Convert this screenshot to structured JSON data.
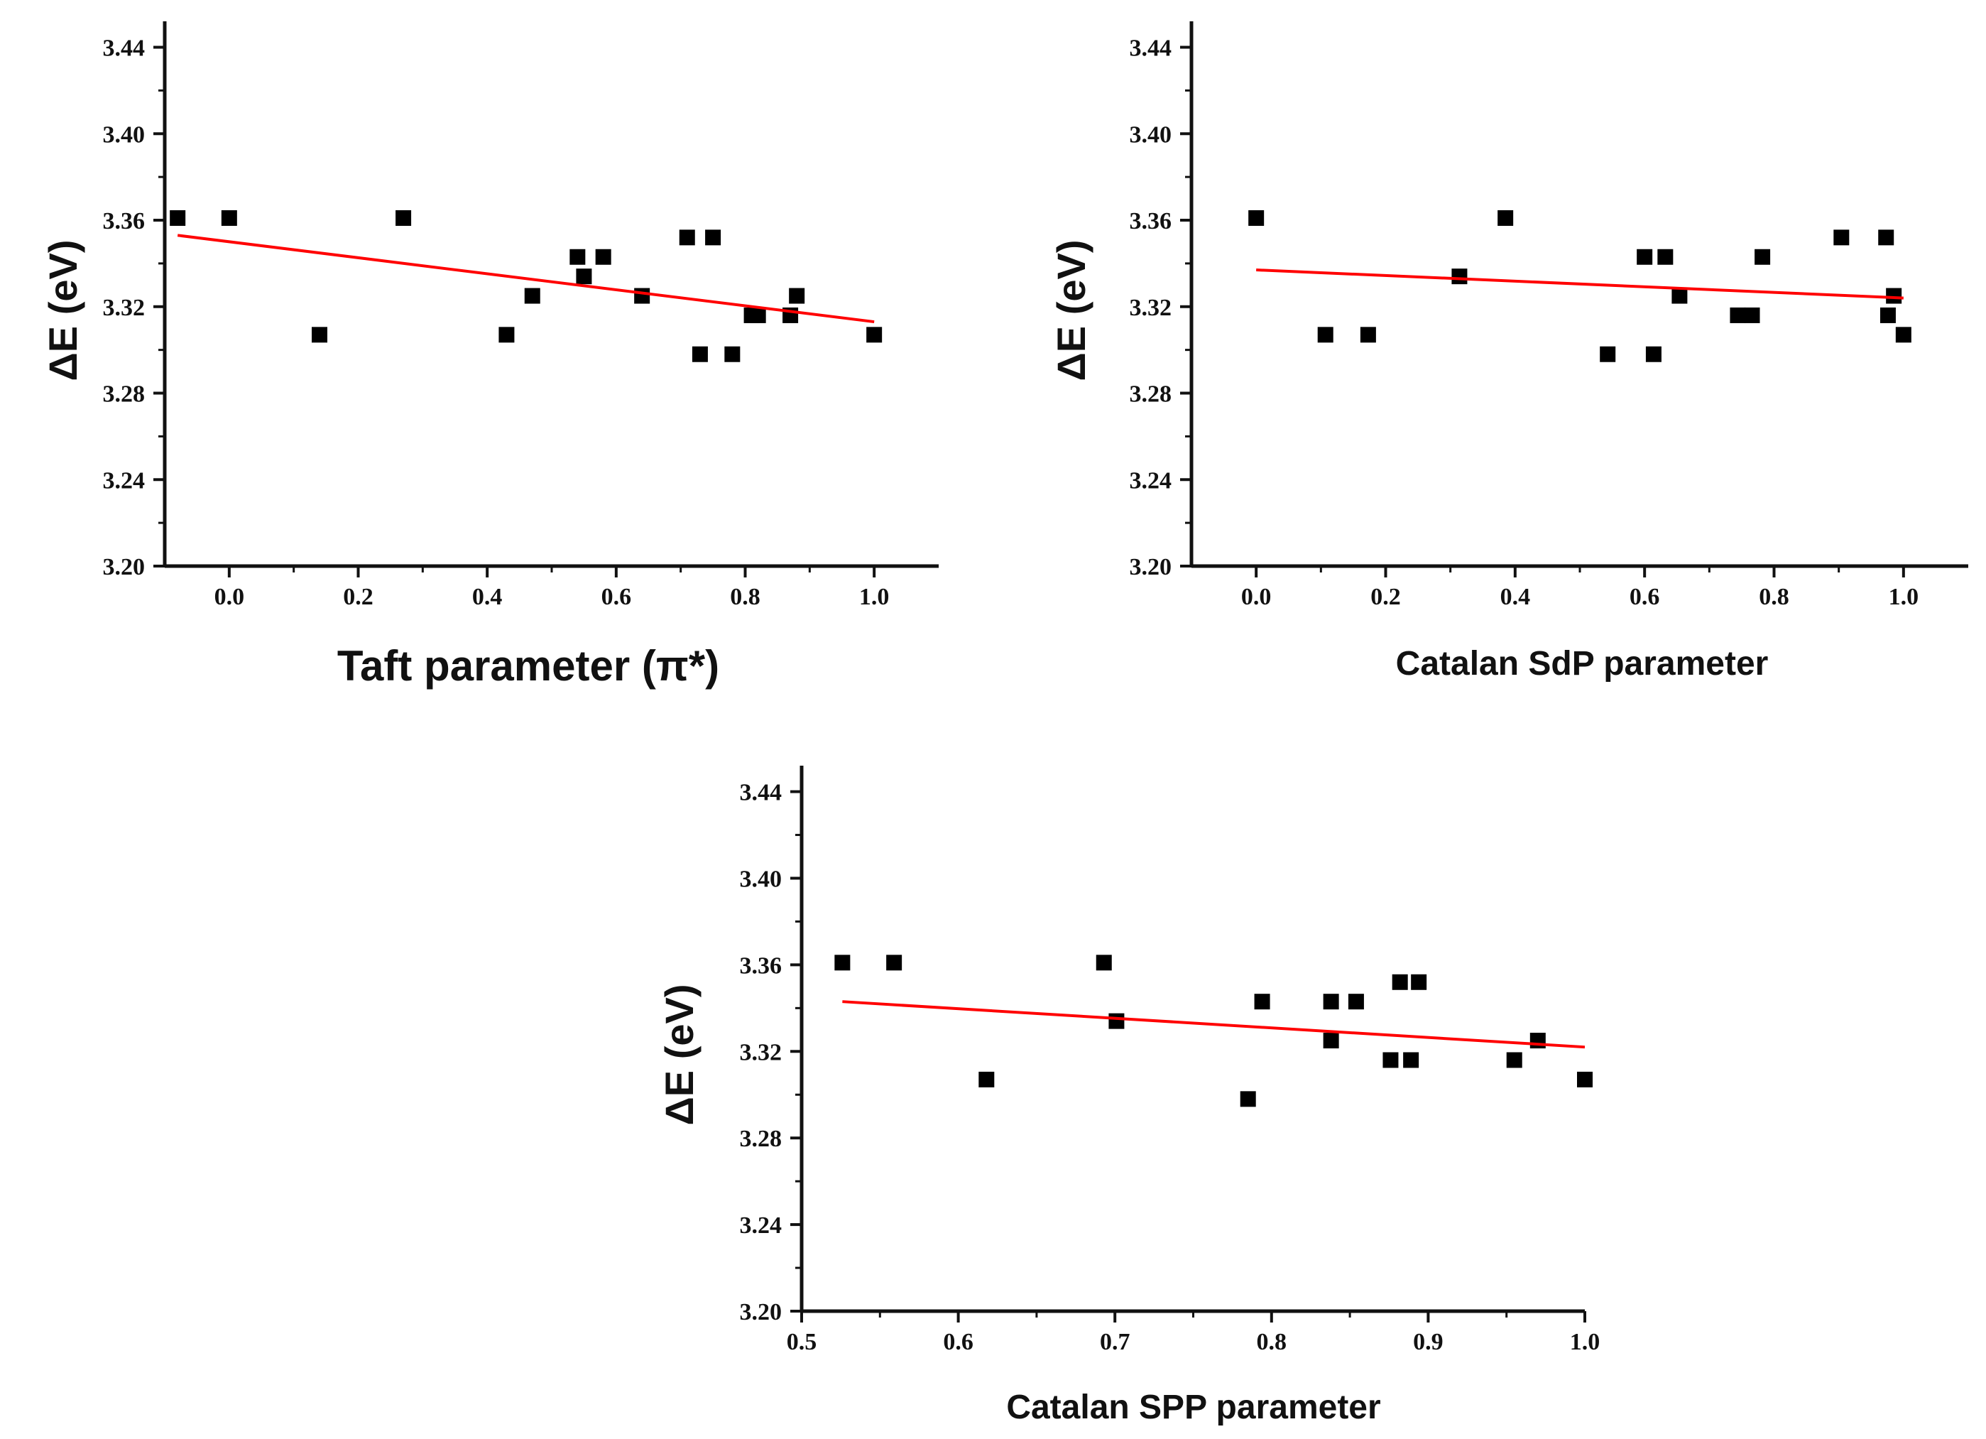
{
  "chart_data": [
    {
      "type": "scatter",
      "title": "",
      "xlabel": "Taft parameter (π*)",
      "ylabel": "ΔE (eV)",
      "xlim": [
        -0.1,
        1.1
      ],
      "ylim": [
        3.2,
        3.452
      ],
      "xticks": [
        0.0,
        0.2,
        0.4,
        0.6,
        0.8,
        1.0
      ],
      "xtick_labels": [
        "0.0",
        "0.2",
        "0.4",
        "0.6",
        "0.8",
        "1.0"
      ],
      "yticks": [
        3.2,
        3.24,
        3.28,
        3.32,
        3.36,
        3.4,
        3.44
      ],
      "ytick_labels": [
        "3.20",
        "3.24",
        "3.28",
        "3.32",
        "3.36",
        "3.40",
        "3.44"
      ],
      "series": [
        {
          "name": "data",
          "x": [
            -0.08,
            0.0,
            0.14,
            0.27,
            0.43,
            0.47,
            0.54,
            0.55,
            0.58,
            0.64,
            0.71,
            0.73,
            0.75,
            0.78,
            0.81,
            0.82,
            0.87,
            0.88,
            1.0
          ],
          "y": [
            3.361,
            3.361,
            3.307,
            3.361,
            3.307,
            3.325,
            3.343,
            3.334,
            3.343,
            3.325,
            3.352,
            3.298,
            3.352,
            3.298,
            3.316,
            3.316,
            3.316,
            3.325,
            3.307
          ]
        }
      ],
      "fit": {
        "x": [
          -0.08,
          1.0
        ],
        "y": [
          3.353,
          3.313
        ]
      },
      "marker_color": "#000000",
      "fit_color": "#ff0000"
    },
    {
      "type": "scatter",
      "title": "",
      "xlabel": "Catalan SdP parameter",
      "ylabel": "ΔE (eV)",
      "xlim": [
        -0.1,
        1.1
      ],
      "ylim": [
        3.2,
        3.452
      ],
      "xticks": [
        0.0,
        0.2,
        0.4,
        0.6,
        0.8,
        1.0
      ],
      "xtick_labels": [
        "0.0",
        "0.2",
        "0.4",
        "0.6",
        "0.8",
        "1.0"
      ],
      "yticks": [
        3.2,
        3.24,
        3.28,
        3.32,
        3.36,
        3.4,
        3.44
      ],
      "ytick_labels": [
        "3.20",
        "3.24",
        "3.28",
        "3.32",
        "3.36",
        "3.40",
        "3.44"
      ],
      "series": [
        {
          "name": "data",
          "x": [
            0.0,
            0.107,
            0.173,
            0.314,
            0.385,
            0.543,
            0.6,
            0.614,
            0.632,
            0.654,
            0.744,
            0.766,
            0.782,
            0.904,
            0.973,
            0.976,
            0.985,
            1.0
          ],
          "y": [
            3.361,
            3.307,
            3.307,
            3.334,
            3.361,
            3.298,
            3.343,
            3.298,
            3.343,
            3.325,
            3.316,
            3.316,
            3.343,
            3.352,
            3.352,
            3.316,
            3.325,
            3.307
          ]
        }
      ],
      "fit": {
        "x": [
          0.0,
          1.0
        ],
        "y": [
          3.337,
          3.324
        ]
      },
      "marker_color": "#000000",
      "fit_color": "#ff0000"
    },
    {
      "type": "scatter",
      "title": "",
      "xlabel": "Catalan SPP parameter",
      "ylabel": "ΔE (eV)",
      "xlim": [
        0.5,
        1.0
      ],
      "ylim": [
        3.2,
        3.452
      ],
      "xticks": [
        0.5,
        0.6,
        0.7,
        0.8,
        0.9,
        1.0
      ],
      "xtick_labels": [
        "0.5",
        "0.6",
        "0.7",
        "0.8",
        "0.9",
        "1.0"
      ],
      "yticks": [
        3.2,
        3.24,
        3.28,
        3.32,
        3.36,
        3.4,
        3.44
      ],
      "ytick_labels": [
        "3.20",
        "3.24",
        "3.28",
        "3.32",
        "3.36",
        "3.40",
        "3.44"
      ],
      "series": [
        {
          "name": "data",
          "x": [
            0.526,
            0.559,
            0.618,
            0.693,
            0.701,
            0.785,
            0.794,
            0.838,
            0.838,
            0.854,
            0.876,
            0.882,
            0.889,
            0.894,
            0.955,
            0.97,
            1.0
          ],
          "y": [
            3.361,
            3.361,
            3.307,
            3.361,
            3.334,
            3.298,
            3.343,
            3.343,
            3.325,
            3.343,
            3.316,
            3.352,
            3.316,
            3.352,
            3.316,
            3.325,
            3.307
          ]
        }
      ],
      "fit": {
        "x": [
          0.526,
          1.0
        ],
        "y": [
          3.343,
          3.322
        ]
      },
      "marker_color": "#000000",
      "fit_color": "#ff0000"
    }
  ]
}
